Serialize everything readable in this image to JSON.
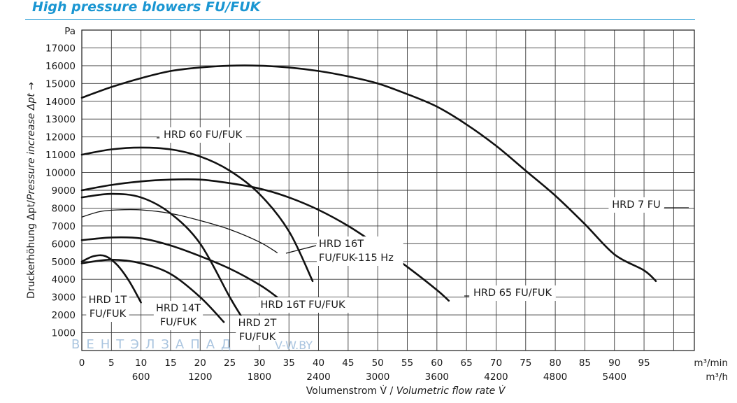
{
  "header": {
    "title": "High pressure blowers FU/FUK"
  },
  "watermark": {
    "brand": "ВЕНТЭЛЗАПАД",
    "site": "V-W.BY"
  },
  "chart_data": {
    "type": "line",
    "title": "High pressure blowers FU/FUK",
    "xlabel_de": "Volumenstrom V̇ / ",
    "xlabel_en": "Volumetric flow rate V̇",
    "ylabel_de": "Druckerhöhung Δpt/",
    "ylabel_en": "Pressure increase Δpt →",
    "y_unit": "Pa",
    "x_unit_min": "m³/min",
    "x_unit_h": "m³/h",
    "xlim": [
      0,
      103.5
    ],
    "ylim": [
      0,
      18000
    ],
    "grid": true,
    "y_ticks": [
      1000,
      2000,
      3000,
      4000,
      5000,
      6000,
      7000,
      8000,
      9000,
      10000,
      11000,
      12000,
      13000,
      14000,
      15000,
      16000,
      17000
    ],
    "x_ticks_min": [
      0,
      5,
      10,
      15,
      20,
      25,
      30,
      35,
      40,
      45,
      50,
      55,
      60,
      65,
      70,
      75,
      80,
      85,
      90,
      95
    ],
    "x_ticks_h": [
      600,
      1200,
      1800,
      2400,
      3000,
      3600,
      4200,
      4800,
      5400
    ],
    "series": [
      {
        "name": "HRD 7 FU",
        "label_lines": [
          "HRD 7 FU"
        ],
        "x": [
          0,
          5,
          10,
          15,
          20,
          25,
          30,
          35,
          40,
          45,
          50,
          55,
          60,
          65,
          70,
          75,
          80,
          85,
          90,
          95,
          97
        ],
        "y": [
          14200,
          14800,
          15300,
          15700,
          15900,
          16000,
          16000,
          15900,
          15700,
          15400,
          15000,
          14400,
          13700,
          12700,
          11500,
          10100,
          8700,
          7100,
          5400,
          4500,
          3900
        ]
      },
      {
        "name": "HRD 65 FU/FUK",
        "label_lines": [
          "HRD 65 FU/FUK"
        ],
        "x": [
          0,
          5,
          10,
          15,
          20,
          25,
          30,
          35,
          40,
          45,
          50,
          55,
          60,
          62
        ],
        "y": [
          9000,
          9300,
          9500,
          9600,
          9600,
          9400,
          9100,
          8600,
          7900,
          7000,
          5900,
          4700,
          3400,
          2800
        ]
      },
      {
        "name": "HRD 60 FU/FUK",
        "label_lines": [
          "HRD 60 FU/FUK"
        ],
        "x": [
          0,
          5,
          10,
          15,
          20,
          25,
          30,
          35,
          39
        ],
        "y": [
          11000,
          11300,
          11400,
          11300,
          10900,
          10100,
          8800,
          6700,
          3900
        ]
      },
      {
        "name": "HRD 16T FU/FUK-115 Hz",
        "label_lines": [
          "HRD 16T",
          "FU/FUK-115 Hz"
        ],
        "x": [
          0,
          3,
          6,
          10,
          15,
          20,
          25,
          30,
          33
        ],
        "y": [
          7500,
          7800,
          7900,
          7900,
          7700,
          7300,
          6800,
          6100,
          5500
        ]
      },
      {
        "name": "HRD 16T FU/FUK",
        "label_lines": [
          "HRD 16T FU/FUK"
        ],
        "x": [
          0,
          5,
          10,
          15,
          20,
          25,
          30,
          33
        ],
        "y": [
          6200,
          6350,
          6300,
          5900,
          5300,
          4600,
          3700,
          3000
        ]
      },
      {
        "name": "HRD 14T FU/FUK",
        "label_lines": [
          "HRD 14T",
          "FU/FUK"
        ],
        "x": [
          0,
          5,
          10,
          15,
          20,
          24
        ],
        "y": [
          4900,
          5100,
          4900,
          4300,
          3000,
          1600
        ]
      },
      {
        "name": "HRD 2T FU/FUK",
        "label_lines": [
          "HRD 2T",
          "FU/FUK"
        ],
        "x": [
          0,
          5,
          10,
          15,
          20,
          25,
          27
        ],
        "y": [
          8600,
          8800,
          8600,
          7700,
          6000,
          3000,
          1900
        ]
      },
      {
        "name": "HRD 1T FU/FUK",
        "label_lines": [
          "HRD 1T",
          "FU/FUK"
        ],
        "x": [
          0,
          2,
          4,
          6,
          8,
          10
        ],
        "y": [
          5000,
          5300,
          5300,
          4800,
          3900,
          2700
        ]
      }
    ]
  }
}
